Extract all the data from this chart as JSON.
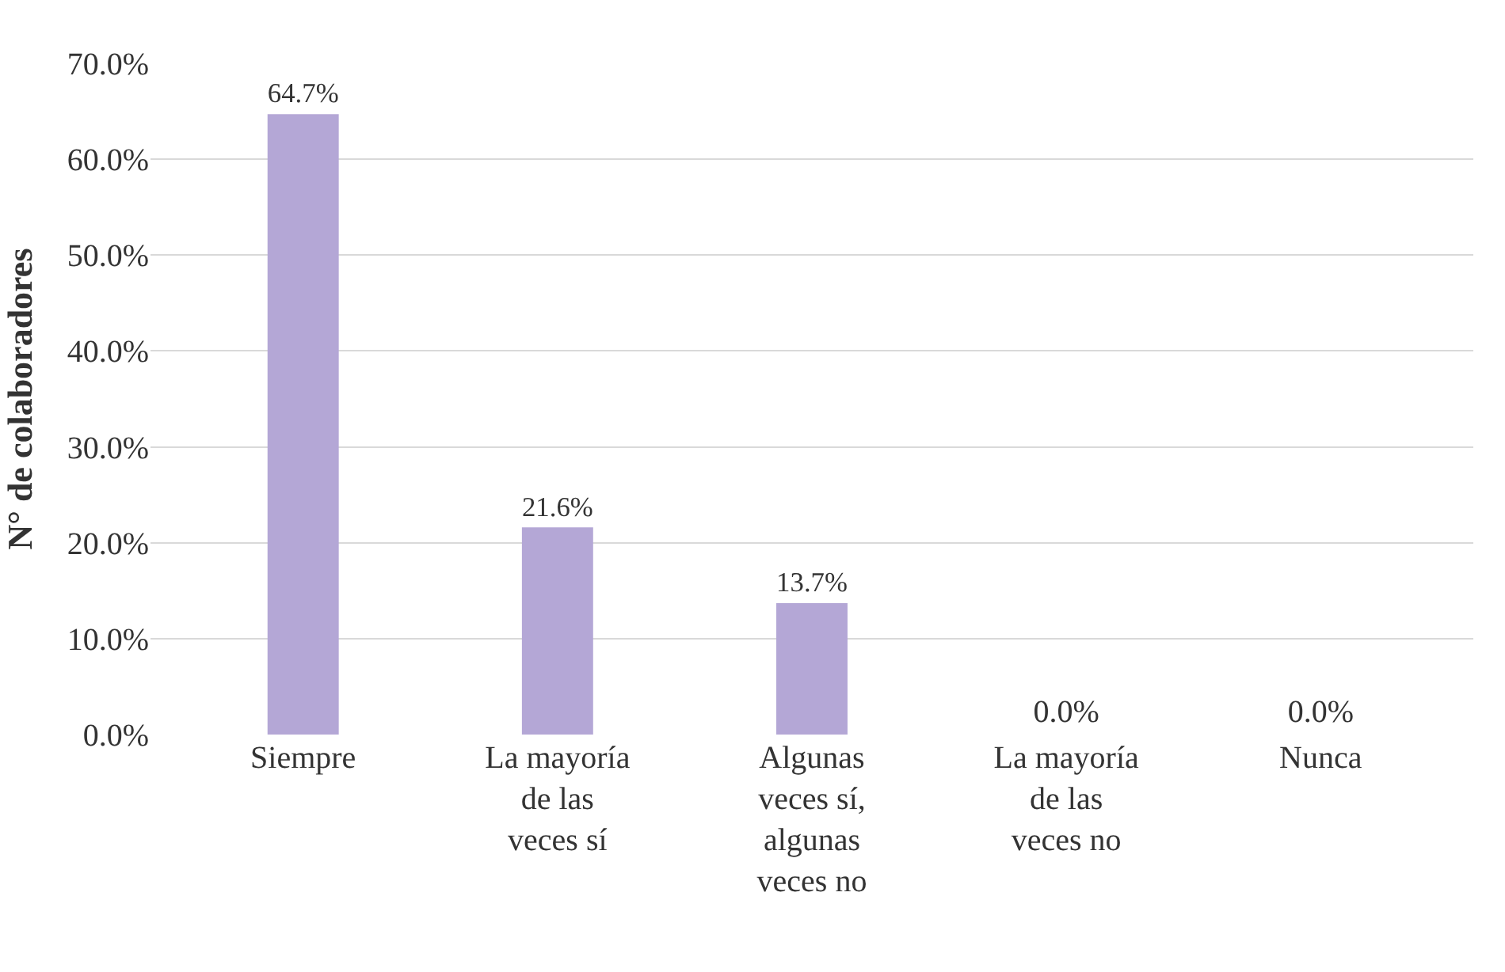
{
  "chart_data": {
    "type": "bar",
    "ylabel": "N° de colaboradores",
    "categories": [
      "Siempre",
      "La mayoría de las veces sí",
      "Algunas veces sí, algunas veces no",
      "La mayoría de las veces no",
      "Nunca"
    ],
    "values": [
      64.7,
      21.6,
      13.7,
      0.0,
      0.0
    ],
    "value_labels": [
      "64.7%",
      "21.6%",
      "13.7%",
      "0.0%",
      "0.0%"
    ],
    "color": "#b4a7d6",
    "ylim": [
      0,
      70
    ],
    "yticks": [
      {
        "value": 0,
        "label": "0.0%"
      },
      {
        "value": 10,
        "label": "10.0%"
      },
      {
        "value": 20,
        "label": "20.0%"
      },
      {
        "value": 30,
        "label": "30.0%"
      },
      {
        "value": 40,
        "label": "40.0%"
      },
      {
        "value": 50,
        "label": "50.0%"
      },
      {
        "value": 60,
        "label": "60.0%"
      },
      {
        "value": 70,
        "label": "70.0%"
      }
    ],
    "grid": "y",
    "legend": false
  }
}
